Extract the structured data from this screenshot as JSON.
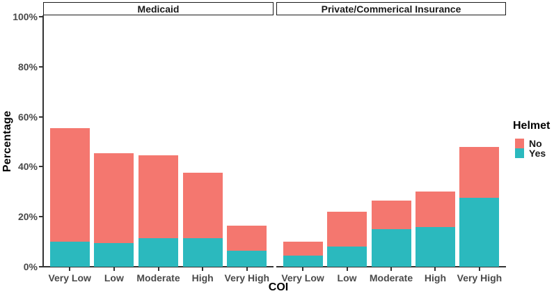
{
  "chart_data": {
    "type": "bar",
    "stacked": true,
    "title": "",
    "xlabel": "COI",
    "ylabel": "Percentage",
    "ylim": [
      0,
      100
    ],
    "y_ticks": [
      {
        "value": 0,
        "label": "0%"
      },
      {
        "value": 20,
        "label": "20%"
      },
      {
        "value": 40,
        "label": "40%"
      },
      {
        "value": 60,
        "label": "60%"
      },
      {
        "value": 80,
        "label": "80%"
      },
      {
        "value": 100,
        "label": "100%"
      }
    ],
    "grid": false,
    "legend_position": "right",
    "categories": [
      "Very Low",
      "Low",
      "Moderate",
      "High",
      "Very High"
    ],
    "facets": [
      {
        "label": "Medicaid",
        "series": [
          {
            "name": "No",
            "values": [
              45.5,
              36.0,
              33.0,
              26.0,
              10.0
            ]
          },
          {
            "name": "Yes",
            "values": [
              10.0,
              9.5,
              11.5,
              11.5,
              6.5
            ]
          }
        ],
        "stacked_totals": [
          55.5,
          45.5,
          44.5,
          37.5,
          16.5
        ]
      },
      {
        "label": "Private/Commerical Insurance",
        "series": [
          {
            "name": "No",
            "values": [
              5.5,
              14.0,
              11.5,
              14.0,
              20.5
            ]
          },
          {
            "name": "Yes",
            "values": [
              4.5,
              8.0,
              15.0,
              16.0,
              27.5
            ]
          }
        ],
        "stacked_totals": [
          10.0,
          22.0,
          26.5,
          30.0,
          48.0
        ]
      }
    ],
    "legend": {
      "title": "Helmet",
      "entries": [
        {
          "label": "No",
          "color": "#F4776F"
        },
        {
          "label": "Yes",
          "color": "#2BB9BE"
        }
      ]
    },
    "colors": {
      "no": "#F4776F",
      "yes": "#2BB9BE",
      "axis_line": "#333333",
      "tick_text": "#4a4a4a",
      "strip_border": "#1a1a1a"
    }
  }
}
